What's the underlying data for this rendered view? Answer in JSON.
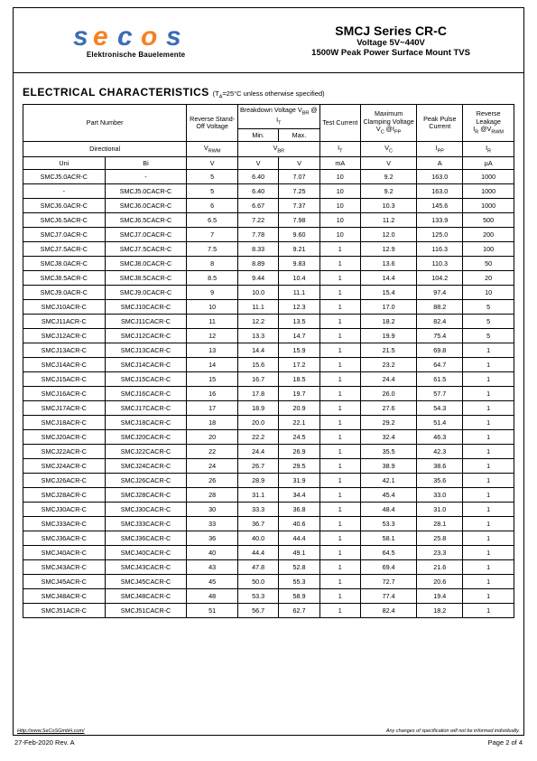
{
  "header": {
    "logo_sub": "Elektronische Bauelemente",
    "title_main": "SMCJ Series CR-C",
    "title_volt": "Voltage 5V~440V",
    "title_desc": "1500W Peak Power Surface Mount TVS",
    "logo_colors": {
      "s": "#3b6db5",
      "e": "#f58220",
      "c": "#3b6db5",
      "o": "#f58220",
      "s2": "#3b6db5"
    }
  },
  "section": {
    "title": "ELECTRICAL CHARACTERISTICS",
    "note": "(T_A=25°C unless otherwise specified)"
  },
  "table": {
    "columns": {
      "part_number": "Part Number",
      "directional": "Directional",
      "uni": "Uni",
      "bi": "Bi",
      "reverse_standoff": "Reverse Stand-Off Voltage",
      "breakdown": "Breakdown Voltage V",
      "breakdown_at": " @ I",
      "min": "Min.",
      "max": "Max.",
      "test_current": "Test Current",
      "max_clamp": "Maximum Clamping Voltage",
      "vc_at": " @I",
      "peak_pulse": "Peak Pulse Current",
      "rev_leak": "Reverse Leakage",
      "ir_at": " @V",
      "vrwm": "V",
      "vbr": "V",
      "it": "I",
      "vc": "V",
      "ipp": "I",
      "ir": "I",
      "unit_v": "V",
      "unit_ma": "mA",
      "unit_a": "A",
      "unit_ua": "µA"
    },
    "rows": [
      {
        "uni": "SMCJ5.0ACR-C",
        "bi": "-",
        "vrwm": "5",
        "min": "6.40",
        "max": "7.07",
        "it": "10",
        "vc": "9.2",
        "ipp": "163.0",
        "ir": "1000"
      },
      {
        "uni": "-",
        "bi": "SMCJ5.0CACR-C",
        "vrwm": "5",
        "min": "6.40",
        "max": "7.25",
        "it": "10",
        "vc": "9.2",
        "ipp": "163.0",
        "ir": "1000"
      },
      {
        "uni": "SMCJ6.0ACR-C",
        "bi": "SMCJ6.0CACR-C",
        "vrwm": "6",
        "min": "6.67",
        "max": "7.37",
        "it": "10",
        "vc": "10.3",
        "ipp": "145.6",
        "ir": "1000"
      },
      {
        "uni": "SMCJ6.5ACR-C",
        "bi": "SMCJ6.5CACR-C",
        "vrwm": "6.5",
        "min": "7.22",
        "max": "7.98",
        "it": "10",
        "vc": "11.2",
        "ipp": "133.9",
        "ir": "500"
      },
      {
        "uni": "SMCJ7.0ACR-C",
        "bi": "SMCJ7.0CACR-C",
        "vrwm": "7",
        "min": "7.78",
        "max": "9.60",
        "it": "10",
        "vc": "12.0",
        "ipp": "125.0",
        "ir": "200"
      },
      {
        "uni": "SMCJ7.5ACR-C",
        "bi": "SMCJ7.5CACR-C",
        "vrwm": "7.5",
        "min": "8.33",
        "max": "9.21",
        "it": "1",
        "vc": "12.9",
        "ipp": "116.3",
        "ir": "100"
      },
      {
        "uni": "SMCJ8.0ACR-C",
        "bi": "SMCJ8.0CACR-C",
        "vrwm": "8",
        "min": "8.89",
        "max": "9.83",
        "it": "1",
        "vc": "13.6",
        "ipp": "110.3",
        "ir": "50"
      },
      {
        "uni": "SMCJ8.5ACR-C",
        "bi": "SMCJ8.5CACR-C",
        "vrwm": "8.5",
        "min": "9.44",
        "max": "10.4",
        "it": "1",
        "vc": "14.4",
        "ipp": "104.2",
        "ir": "20"
      },
      {
        "uni": "SMCJ9.0ACR-C",
        "bi": "SMCJ9.0CACR-C",
        "vrwm": "9",
        "min": "10.0",
        "max": "11.1",
        "it": "1",
        "vc": "15.4",
        "ipp": "97.4",
        "ir": "10"
      },
      {
        "uni": "SMCJ10ACR-C",
        "bi": "SMCJ10CACR-C",
        "vrwm": "10",
        "min": "11.1",
        "max": "12.3",
        "it": "1",
        "vc": "17.0",
        "ipp": "88.2",
        "ir": "5"
      },
      {
        "uni": "SMCJ11ACR-C",
        "bi": "SMCJ11CACR-C",
        "vrwm": "11",
        "min": "12.2",
        "max": "13.5",
        "it": "1",
        "vc": "18.2",
        "ipp": "82.4",
        "ir": "5"
      },
      {
        "uni": "SMCJ12ACR-C",
        "bi": "SMCJ12CACR-C",
        "vrwm": "12",
        "min": "13.3",
        "max": "14.7",
        "it": "1",
        "vc": "19.9",
        "ipp": "75.4",
        "ir": "5"
      },
      {
        "uni": "SMCJ13ACR-C",
        "bi": "SMCJ13CACR-C",
        "vrwm": "13",
        "min": "14.4",
        "max": "15.9",
        "it": "1",
        "vc": "21.5",
        "ipp": "69.8",
        "ir": "1"
      },
      {
        "uni": "SMCJ14ACR-C",
        "bi": "SMCJ14CACR-C",
        "vrwm": "14",
        "min": "15.6",
        "max": "17.2",
        "it": "1",
        "vc": "23.2",
        "ipp": "64.7",
        "ir": "1"
      },
      {
        "uni": "SMCJ15ACR-C",
        "bi": "SMCJ15CACR-C",
        "vrwm": "15",
        "min": "16.7",
        "max": "18.5",
        "it": "1",
        "vc": "24.4",
        "ipp": "61.5",
        "ir": "1"
      },
      {
        "uni": "SMCJ16ACR-C",
        "bi": "SMCJ16CACR-C",
        "vrwm": "16",
        "min": "17.8",
        "max": "19.7",
        "it": "1",
        "vc": "26.0",
        "ipp": "57.7",
        "ir": "1"
      },
      {
        "uni": "SMCJ17ACR-C",
        "bi": "SMCJ17CACR-C",
        "vrwm": "17",
        "min": "18.9",
        "max": "20.9",
        "it": "1",
        "vc": "27.6",
        "ipp": "54.3",
        "ir": "1"
      },
      {
        "uni": "SMCJ18ACR-C",
        "bi": "SMCJ18CACR-C",
        "vrwm": "18",
        "min": "20.0",
        "max": "22.1",
        "it": "1",
        "vc": "29.2",
        "ipp": "51.4",
        "ir": "1"
      },
      {
        "uni": "SMCJ20ACR-C",
        "bi": "SMCJ20CACR-C",
        "vrwm": "20",
        "min": "22.2",
        "max": "24.5",
        "it": "1",
        "vc": "32.4",
        "ipp": "46.3",
        "ir": "1"
      },
      {
        "uni": "SMCJ22ACR-C",
        "bi": "SMCJ22CACR-C",
        "vrwm": "22",
        "min": "24.4",
        "max": "26.9",
        "it": "1",
        "vc": "35.5",
        "ipp": "42.3",
        "ir": "1"
      },
      {
        "uni": "SMCJ24ACR-C",
        "bi": "SMCJ24CACR-C",
        "vrwm": "24",
        "min": "26.7",
        "max": "29.5",
        "it": "1",
        "vc": "38.9",
        "ipp": "38.6",
        "ir": "1"
      },
      {
        "uni": "SMCJ26ACR-C",
        "bi": "SMCJ26CACR-C",
        "vrwm": "26",
        "min": "28.9",
        "max": "31.9",
        "it": "1",
        "vc": "42.1",
        "ipp": "35.6",
        "ir": "1"
      },
      {
        "uni": "SMCJ28ACR-C",
        "bi": "SMCJ28CACR-C",
        "vrwm": "28",
        "min": "31.1",
        "max": "34.4",
        "it": "1",
        "vc": "45.4",
        "ipp": "33.0",
        "ir": "1"
      },
      {
        "uni": "SMCJ30ACR-C",
        "bi": "SMCJ30CACR-C",
        "vrwm": "30",
        "min": "33.3",
        "max": "36.8",
        "it": "1",
        "vc": "48.4",
        "ipp": "31.0",
        "ir": "1"
      },
      {
        "uni": "SMCJ33ACR-C",
        "bi": "SMCJ33CACR-C",
        "vrwm": "33",
        "min": "36.7",
        "max": "40.6",
        "it": "1",
        "vc": "53.3",
        "ipp": "28.1",
        "ir": "1"
      },
      {
        "uni": "SMCJ36ACR-C",
        "bi": "SMCJ36CACR-C",
        "vrwm": "36",
        "min": "40.0",
        "max": "44.4",
        "it": "1",
        "vc": "58.1",
        "ipp": "25.8",
        "ir": "1"
      },
      {
        "uni": "SMCJ40ACR-C",
        "bi": "SMCJ40CACR-C",
        "vrwm": "40",
        "min": "44.4",
        "max": "49.1",
        "it": "1",
        "vc": "64.5",
        "ipp": "23.3",
        "ir": "1"
      },
      {
        "uni": "SMCJ43ACR-C",
        "bi": "SMCJ43CACR-C",
        "vrwm": "43",
        "min": "47.8",
        "max": "52.8",
        "it": "1",
        "vc": "69.4",
        "ipp": "21.6",
        "ir": "1"
      },
      {
        "uni": "SMCJ45ACR-C",
        "bi": "SMCJ45CACR-C",
        "vrwm": "45",
        "min": "50.0",
        "max": "55.3",
        "it": "1",
        "vc": "72.7",
        "ipp": "20.6",
        "ir": "1"
      },
      {
        "uni": "SMCJ48ACR-C",
        "bi": "SMCJ48CACR-C",
        "vrwm": "48",
        "min": "53.3",
        "max": "58.9",
        "it": "1",
        "vc": "77.4",
        "ipp": "19.4",
        "ir": "1"
      },
      {
        "uni": "SMCJ51ACR-C",
        "bi": "SMCJ51CACR-C",
        "vrwm": "51",
        "min": "56.7",
        "max": "62.7",
        "it": "1",
        "vc": "82.4",
        "ipp": "18.2",
        "ir": "1"
      }
    ]
  },
  "footer": {
    "link": "Http://www.SeCoSGmbH.com/",
    "changes": "Any changes of specification will not be informed individually.",
    "rev": "27-Feb-2020 Rev. A",
    "page": "Page  2  of  4"
  }
}
